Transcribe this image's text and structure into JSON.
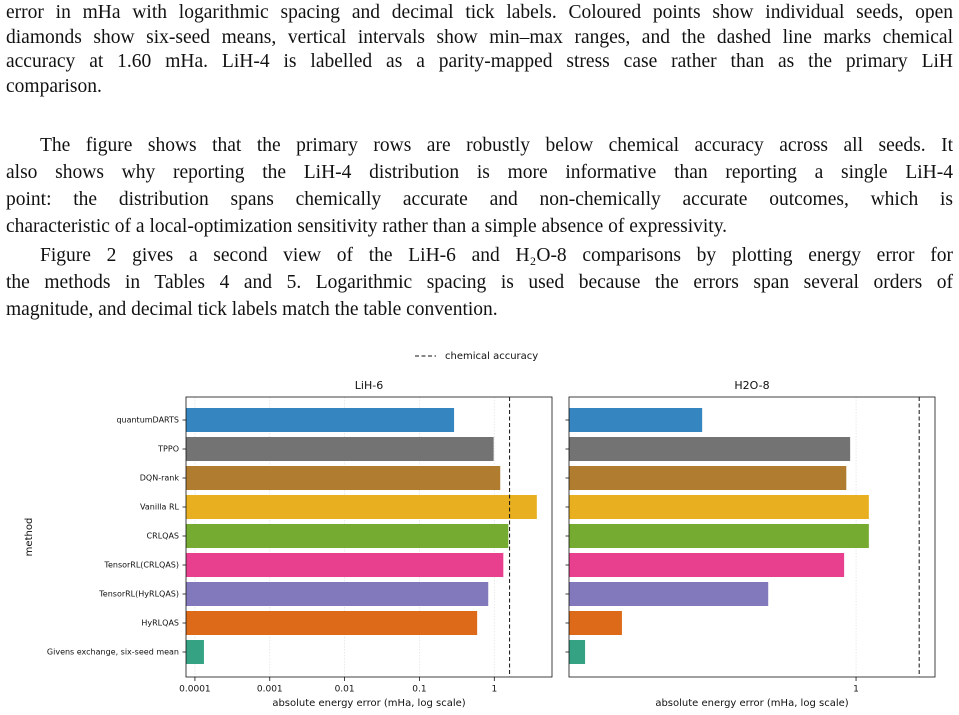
{
  "document": {
    "paragraphs": [
      {
        "indent": false,
        "lines": [
          "error in mHa with logarithmic spacing and decimal tick labels. Coloured points show individual seeds, open",
          "diamonds show six-seed means, vertical intervals show min–max ranges, and the dashed line marks chemical",
          "accuracy at 1.60 mHa.  LiH-4 is labelled as a parity-mapped stress case rather than as the primary LiH",
          "comparison."
        ]
      },
      {
        "indent": true,
        "lines": [
          "The figure shows that the primary rows are robustly below chemical accuracy across all seeds. It",
          "also shows why reporting the LiH-4 distribution is more informative than reporting a single LiH-4",
          "point: the distribution spans chemically accurate and non-chemically accurate outcomes, which is",
          "characteristic of a local-optimization sensitivity rather than a simple absence of expressivity."
        ]
      },
      {
        "indent": true,
        "lines": [
          "Figure 2 gives a second view of the LiH-6 and H₂O-8 comparisons by plotting energy error for",
          "the methods in Tables 4 and 5. Logarithmic spacing is used because the errors span several orders of",
          "magnitude, and decimal tick labels match the table convention."
        ]
      }
    ]
  },
  "chart_data": [
    {
      "type": "bar",
      "orientation": "horizontal",
      "title": "LiH-6",
      "categories": [
        "quantumDARTS",
        "TPPO",
        "DQN-rank",
        "Vanilla RL",
        "CRLQAS",
        "TensorRL(CRLQAS)",
        "TensorRL(HyRLQAS)",
        "HyRLQAS",
        "Givens exchange, six-seed mean"
      ],
      "values": [
        0.29,
        0.98,
        1.2,
        3.7,
        1.54,
        1.32,
        0.83,
        0.59,
        0.000132
      ],
      "colors": [
        "#3586c0",
        "#737373",
        "#b07d30",
        "#e8b020",
        "#76ab32",
        "#e8408f",
        "#8279bc",
        "#dd6a18",
        "#35a383"
      ],
      "xlabel": "absolute energy error (mHa, log scale)",
      "ylabel": "method",
      "xscale": "log",
      "xlim": [
        7.6e-05,
        5.9
      ],
      "xticks": [
        0.0001,
        0.001,
        0.01,
        0.1,
        1
      ],
      "grid": true,
      "reference_line": {
        "value": 1.6,
        "label": "chemical accuracy",
        "style": "dashed"
      },
      "legend": "upper center"
    },
    {
      "type": "bar",
      "orientation": "horizontal",
      "title": "H2O-8",
      "categories": [
        null,
        null,
        null,
        null,
        null,
        null,
        null,
        null,
        null
      ],
      "values": [
        0.318,
        0.957,
        0.93,
        1.1,
        1.1,
        0.915,
        0.52,
        0.175,
        0.133
      ],
      "colors": [
        "#3586c0",
        "#737373",
        "#b07d30",
        "#e8b020",
        "#76ab32",
        "#e8408f",
        "#8279bc",
        "#dd6a18",
        "#35a383"
      ],
      "xlabel": "absolute energy error (mHa, log scale)",
      "xscale": "log",
      "xlim": [
        0.118,
        1.8
      ],
      "xticks": [
        1
      ],
      "grid": true,
      "reference_line": {
        "value": 1.6,
        "style": "dashed"
      }
    }
  ]
}
